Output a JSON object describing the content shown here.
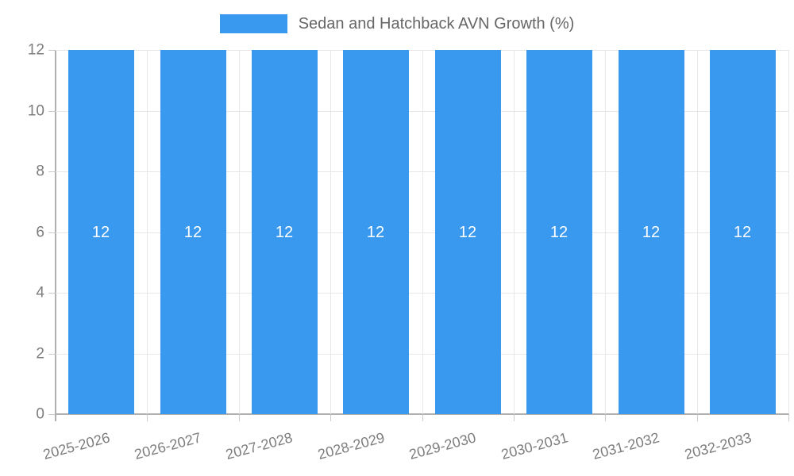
{
  "legend": {
    "label": "Sedan and Hatchback AVN Growth (%)"
  },
  "colors": {
    "bar": "#3899ee",
    "bar_value_text": "#ffffff",
    "legend_text": "#666666",
    "axis_text": "#7d7d7d",
    "gridline": "#e7e7e7",
    "axis_line": "#b0b0b0"
  },
  "chart_data": {
    "type": "bar",
    "title": "Sedan and Hatchback AVN Growth (%)",
    "categories": [
      "2025-2026",
      "2026-2027",
      "2027-2028",
      "2028-2029",
      "2029-2030",
      "2030-2031",
      "2031-2032",
      "2032-2033"
    ],
    "series": [
      {
        "name": "Sedan and Hatchback AVN Growth (%)",
        "values": [
          12,
          12,
          12,
          12,
          12,
          12,
          12,
          12
        ]
      }
    ],
    "value_labels": [
      "12",
      "12",
      "12",
      "12",
      "12",
      "12",
      "12",
      "12"
    ],
    "xlabel": "",
    "ylabel": "",
    "ylim": [
      0,
      12
    ],
    "yticks": [
      0,
      2,
      4,
      6,
      8,
      10,
      12
    ],
    "grid": true,
    "legend_position": "top",
    "bar_value_labels_shown": true,
    "x_tick_label_rotation_deg": -15
  }
}
